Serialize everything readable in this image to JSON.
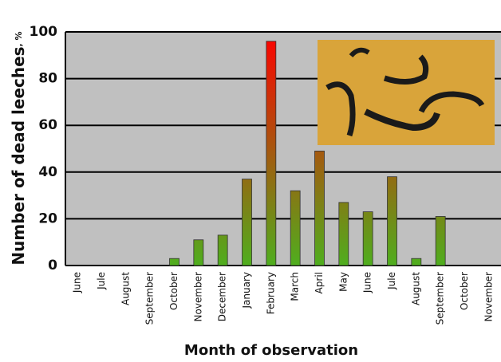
{
  "chart_data": {
    "type": "bar",
    "ylabel": "Number of dead leeches",
    "ylabel_unit": ", %",
    "xlabel": "Month of observation",
    "categories": [
      "June",
      "Jule",
      "August",
      "September",
      "October",
      "November",
      "December",
      "January",
      "February",
      "March",
      "April",
      "May",
      "June",
      "Jule",
      "August",
      "September",
      "October",
      "November"
    ],
    "values": [
      0,
      0,
      0,
      0,
      3,
      11,
      13,
      37,
      96,
      32,
      49,
      27,
      23,
      38,
      3,
      21,
      0,
      0
    ],
    "color_low": "#4fae1e",
    "color_high": "#ff0000",
    "ylim": [
      0,
      100
    ],
    "yticks": [
      0,
      20,
      40,
      60,
      80,
      100
    ],
    "grid": true
  }
}
